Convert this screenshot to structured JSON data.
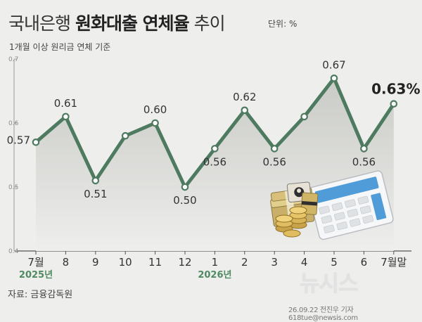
{
  "header": {
    "title_part1": "국내은행 ",
    "title_part2": "원화대출 연체율",
    "title_part3": " 추이",
    "unit": "단위: %",
    "subtitle": "1개월 이상 원리금 연체 기준"
  },
  "footer": {
    "source": "자료: 금융감독원",
    "credit": "26.09.22 전진우 기자 618tue@newsis.com",
    "watermark": "뉴시스"
  },
  "colors": {
    "line": "#4e7a60",
    "area_top": "#c9cbc6",
    "area_bottom": "#eeeeec",
    "year": "#4f8a62"
  },
  "chart_data": {
    "type": "area",
    "categories": [
      "7월",
      "8",
      "9",
      "10",
      "11",
      "12",
      "1",
      "2",
      "3",
      "4",
      "5",
      "6",
      "7월말"
    ],
    "values": [
      0.57,
      0.61,
      0.51,
      0.58,
      0.6,
      0.5,
      0.56,
      0.62,
      0.56,
      0.61,
      0.67,
      0.56,
      0.63
    ],
    "data_labels": [
      "0.57",
      "0.61",
      "0.51",
      "",
      "0.60",
      "0.50",
      "0.56",
      "0.62",
      "0.56",
      "",
      "0.67",
      "0.56",
      "0.63%"
    ],
    "year_labels": [
      {
        "index": 0,
        "text": "2025년"
      },
      {
        "index": 6,
        "text": "2026년"
      }
    ],
    "y_ticks": [
      "0.7",
      "0.6",
      "0.5",
      "0.4"
    ],
    "ylim": [
      0.4,
      0.7
    ],
    "grid": false
  }
}
